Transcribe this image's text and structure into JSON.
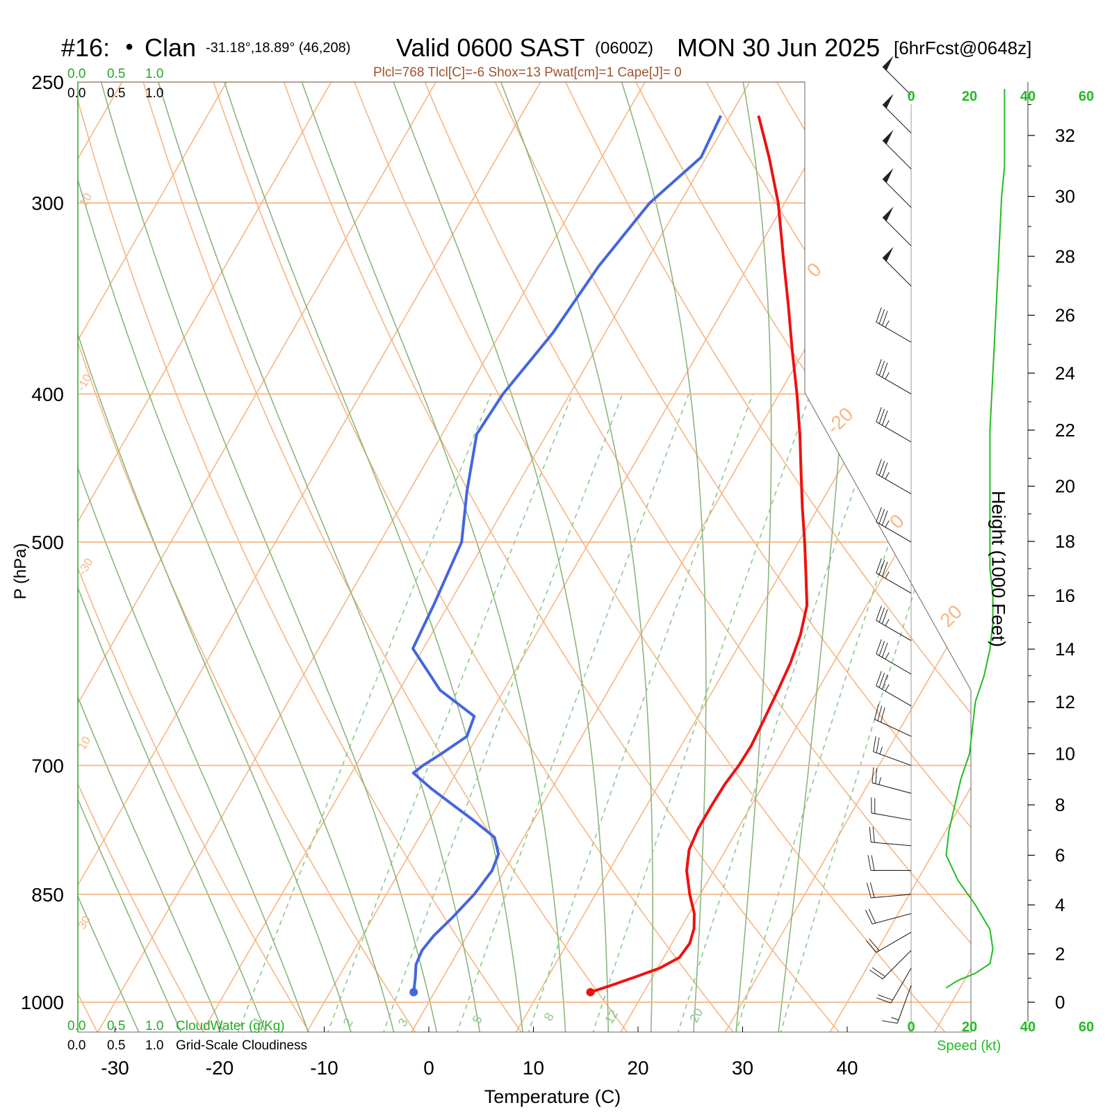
{
  "header": {
    "station": "#16:",
    "dot": "●",
    "name": "Clan",
    "coords": "-31.18°,18.89° (46,208)",
    "valid": "Valid 0600 SAST",
    "zulu": "(0600Z)",
    "date": "MON 30 Jun 2025",
    "forecast": "[6hrFcst@0648z]"
  },
  "indices": "Plcl=768 Tlcl[C]=-6 Shox=13 Pwat[cm]=1 Cape[J]= 0",
  "colors": {
    "temperature": "#ee1111",
    "dewpoint": "#4466dd",
    "isotherm": "#f7b583",
    "dry_adiabat": "#f7b583",
    "moist_adiabat": "#8bb57c",
    "mixing_ratio": "#8bc88a",
    "speed": "#22bb22",
    "cloud": "#22aa22"
  },
  "cloud_scale": {
    "ticks": [
      "0.0",
      "0.5",
      "1.0"
    ],
    "cloudwater_label": "CloudWater (g/Kg)",
    "cloudiness_label": "Grid-Scale Cloudiness"
  },
  "speed_axis": {
    "ticks": [
      "0",
      "20",
      "40",
      "60"
    ],
    "label": "Speed (kt)"
  },
  "height_axis": {
    "label": "Height (1000 Feet)",
    "ticks": [
      "0",
      "2",
      "4",
      "6",
      "8",
      "10",
      "12",
      "14",
      "16",
      "18",
      "20",
      "22",
      "24",
      "26",
      "28",
      "30",
      "32"
    ]
  },
  "chart_data": {
    "type": "line",
    "title": "Valid 0600 SAST (0600Z) MON 30 Jun 2025",
    "xlabel": "Temperature (C)",
    "ylabel": "P (hPa)",
    "x_ticks": [
      "-30",
      "-20",
      "-10",
      "0",
      "10",
      "20",
      "30",
      "40"
    ],
    "y_ticks": [
      "250",
      "300",
      "400",
      "500",
      "700",
      "850",
      "1000"
    ],
    "pressure_levels": [
      250,
      300,
      400,
      500,
      700,
      850,
      1000
    ],
    "isotherm_labels": [
      "10",
      "0",
      "-10",
      "-20",
      "-30",
      "0",
      "10",
      "20",
      "30"
    ],
    "mixing_ratio_labels": [
      "1",
      "2",
      "3",
      "5",
      "8",
      "12",
      "20"
    ],
    "series": [
      {
        "name": "Temperature",
        "points": [
          [
            14.9,
            985
          ],
          [
            16.5,
            975
          ],
          [
            18.3,
            963
          ],
          [
            20.2,
            950
          ],
          [
            21.5,
            935
          ],
          [
            21.7,
            915
          ],
          [
            21.3,
            895
          ],
          [
            20.5,
            875
          ],
          [
            19.0,
            850
          ],
          [
            17.4,
            820
          ],
          [
            16.5,
            795
          ],
          [
            16.2,
            770
          ],
          [
            16.2,
            745
          ],
          [
            16.3,
            720
          ],
          [
            16.6,
            700
          ],
          [
            16.7,
            680
          ],
          [
            16.5,
            655
          ],
          [
            16.2,
            625
          ],
          [
            15.9,
            600
          ],
          [
            15.3,
            575
          ],
          [
            14.3,
            550
          ],
          [
            12.5,
            525
          ],
          [
            10.6,
            500
          ],
          [
            8.5,
            475
          ],
          [
            6.4,
            450
          ],
          [
            4.2,
            425
          ],
          [
            1.7,
            400
          ],
          [
            -1.1,
            375
          ],
          [
            -4.0,
            350
          ],
          [
            -7.2,
            325
          ],
          [
            -10.6,
            300
          ],
          [
            -14.0,
            280
          ],
          [
            -17.3,
            263
          ]
        ]
      },
      {
        "name": "Dewpoint",
        "points": [
          [
            -2.0,
            985
          ],
          [
            -2.6,
            965
          ],
          [
            -3.3,
            945
          ],
          [
            -3.5,
            925
          ],
          [
            -3.2,
            905
          ],
          [
            -2.4,
            880
          ],
          [
            -1.6,
            850
          ],
          [
            -1.2,
            820
          ],
          [
            -1.5,
            800
          ],
          [
            -2.8,
            780
          ],
          [
            -5.8,
            760
          ],
          [
            -11.5,
            725
          ],
          [
            -14.1,
            708
          ],
          [
            -13.6,
            700
          ],
          [
            -12.5,
            688
          ],
          [
            -11.0,
            670
          ],
          [
            -11.4,
            650
          ],
          [
            -16.1,
            625
          ],
          [
            -21.0,
            587
          ],
          [
            -21.4,
            550
          ],
          [
            -22.2,
            500
          ],
          [
            -24.5,
            463
          ],
          [
            -26.7,
            425
          ],
          [
            -26.4,
            400
          ],
          [
            -25.0,
            365
          ],
          [
            -24.3,
            330
          ],
          [
            -22.9,
            300
          ],
          [
            -20.5,
            280
          ],
          [
            -20.9,
            263
          ]
        ]
      }
    ],
    "wind_barbs": [
      {
        "p": 255,
        "dir": 315,
        "kt": 50
      },
      {
        "p": 270,
        "dir": 315,
        "kt": 50
      },
      {
        "p": 285,
        "dir": 315,
        "kt": 50
      },
      {
        "p": 302,
        "dir": 315,
        "kt": 50
      },
      {
        "p": 320,
        "dir": 315,
        "kt": 50
      },
      {
        "p": 340,
        "dir": 315,
        "kt": 50
      },
      {
        "p": 370,
        "dir": 300,
        "kt": 35
      },
      {
        "p": 400,
        "dir": 300,
        "kt": 35
      },
      {
        "p": 430,
        "dir": 300,
        "kt": 35
      },
      {
        "p": 465,
        "dir": 300,
        "kt": 35
      },
      {
        "p": 500,
        "dir": 300,
        "kt": 35
      },
      {
        "p": 540,
        "dir": 300,
        "kt": 35
      },
      {
        "p": 580,
        "dir": 300,
        "kt": 35
      },
      {
        "p": 610,
        "dir": 300,
        "kt": 35
      },
      {
        "p": 640,
        "dir": 300,
        "kt": 35
      },
      {
        "p": 670,
        "dir": 295,
        "kt": 30
      },
      {
        "p": 700,
        "dir": 290,
        "kt": 25
      },
      {
        "p": 730,
        "dir": 285,
        "kt": 25
      },
      {
        "p": 760,
        "dir": 280,
        "kt": 20
      },
      {
        "p": 790,
        "dir": 275,
        "kt": 20
      },
      {
        "p": 820,
        "dir": 270,
        "kt": 20
      },
      {
        "p": 850,
        "dir": 265,
        "kt": 20
      },
      {
        "p": 875,
        "dir": 255,
        "kt": 20
      },
      {
        "p": 900,
        "dir": 240,
        "kt": 20
      },
      {
        "p": 925,
        "dir": 225,
        "kt": 20
      },
      {
        "p": 950,
        "dir": 210,
        "kt": 20
      },
      {
        "p": 975,
        "dir": 200,
        "kt": 15
      }
    ],
    "speed_profile": [
      [
        0.6,
        12
      ],
      [
        0.9,
        16
      ],
      [
        1.2,
        22
      ],
      [
        1.6,
        27
      ],
      [
        2.2,
        28
      ],
      [
        3.0,
        27
      ],
      [
        4.0,
        22
      ],
      [
        5.0,
        16
      ],
      [
        6.0,
        12
      ],
      [
        7.0,
        13
      ],
      [
        8.0,
        15
      ],
      [
        9.0,
        17
      ],
      [
        10.0,
        20
      ],
      [
        11.0,
        21
      ],
      [
        12.0,
        22
      ],
      [
        13.0,
        25
      ],
      [
        14.0,
        27
      ],
      [
        15.0,
        28
      ],
      [
        16.0,
        28
      ],
      [
        17.0,
        27
      ],
      [
        18.0,
        27
      ],
      [
        20.0,
        27
      ],
      [
        22.0,
        27
      ],
      [
        24.0,
        28
      ],
      [
        26.0,
        29
      ],
      [
        28.0,
        30
      ],
      [
        30.0,
        31
      ],
      [
        31.0,
        32
      ],
      [
        31.5,
        32
      ],
      [
        32.5,
        32
      ],
      [
        33.5,
        32
      ]
    ]
  }
}
